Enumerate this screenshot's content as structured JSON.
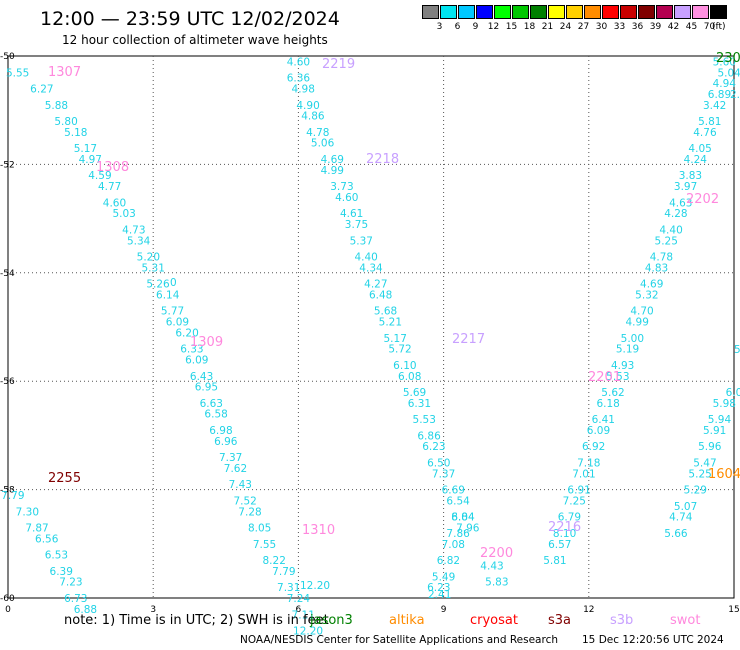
{
  "title": "12:00 — 23:59 UTC 12/02/2024",
  "subtitle": "12 hour collection of altimeter wave heights",
  "legend": {
    "unit": "(ft)",
    "bins": [
      {
        "label": "3",
        "color": "#808080"
      },
      {
        "label": "6",
        "color": "#00e5f0"
      },
      {
        "label": "9",
        "color": "#00c8ff"
      },
      {
        "label": "12",
        "color": "#0000ff"
      },
      {
        "label": "15",
        "color": "#00ff00"
      },
      {
        "label": "18",
        "color": "#00c800"
      },
      {
        "label": "21",
        "color": "#008000"
      },
      {
        "label": "24",
        "color": "#ffff00"
      },
      {
        "label": "27",
        "color": "#ffd000"
      },
      {
        "label": "30",
        "color": "#ff8c00"
      },
      {
        "label": "33",
        "color": "#ff0000"
      },
      {
        "label": "36",
        "color": "#c80000"
      },
      {
        "label": "39",
        "color": "#800000"
      },
      {
        "label": "42",
        "color": "#b40050"
      },
      {
        "label": "45",
        "color": "#c8a0ff"
      },
      {
        "label": "70",
        "color": "#ff90e0"
      },
      {
        "label": "",
        "color": "#000000"
      }
    ]
  },
  "axes": {
    "x_ticks": [
      "0",
      "3",
      "6",
      "9",
      "12",
      "15"
    ],
    "y_ticks": [
      "-50",
      "-52",
      "-54",
      "-56",
      "-58",
      "-60"
    ]
  },
  "swh_color": "#22d3e6",
  "passes": [
    {
      "id": "1307",
      "color": "#ff88dd",
      "points": [
        [
          "-50.3",
          "0.2",
          "5.55"
        ],
        [
          "-50.6",
          "0.7",
          "6.27"
        ],
        [
          "-50.9",
          "1.0",
          "5.88"
        ],
        [
          "-51.2",
          "1.2",
          "5.80"
        ],
        [
          "-51.4",
          "1.4",
          "5.18"
        ],
        [
          "-51.7",
          "1.6",
          "5.17"
        ],
        [
          "-51.9",
          "1.7",
          "4.97"
        ],
        [
          "-52.2",
          "1.9",
          "4.59"
        ],
        [
          "-52.4",
          "2.1",
          "4.77"
        ],
        [
          "-52.7",
          "2.2",
          "4.60"
        ],
        [
          "-52.9",
          "2.4",
          "5.03"
        ],
        [
          "-53.2",
          "2.6",
          "4.73"
        ],
        [
          "-53.4",
          "2.7",
          "5.34"
        ],
        [
          "-53.7",
          "2.9",
          "5.20"
        ],
        [
          "-53.9",
          "3.0",
          "5.31"
        ],
        [
          "-54.2",
          "3.1",
          "5.26"
        ],
        [
          "-54.4",
          "3.3",
          "6.14"
        ],
        [
          "-54.7",
          "3.4",
          "5.77"
        ],
        [
          "-54.9",
          "3.5",
          "6.09"
        ],
        [
          "-55.1",
          "3.7",
          "6.20"
        ],
        [
          "-55.4",
          "3.8",
          "6.33"
        ],
        [
          "-55.6",
          "3.9",
          "6.09"
        ],
        [
          "-55.9",
          "4.0",
          "6.43"
        ],
        [
          "-56.1",
          "4.1",
          "6.95"
        ],
        [
          "-56.4",
          "4.2",
          "6.63"
        ],
        [
          "-56.6",
          "4.3",
          "6.58"
        ],
        [
          "-56.9",
          "4.4",
          "6.98"
        ],
        [
          "-57.1",
          "4.5",
          "6.96"
        ],
        [
          "-57.4",
          "4.6",
          "7.37"
        ],
        [
          "-57.6",
          "4.7",
          "7.62"
        ],
        [
          "-57.9",
          "4.8",
          "7.43"
        ],
        [
          "-58.2",
          "4.9",
          "7.52"
        ],
        [
          "-58.4",
          "5.0",
          "7.28"
        ],
        [
          "-58.7",
          "5.2",
          "8.05"
        ],
        [
          "-59.0",
          "5.3",
          "7.55"
        ],
        [
          "-59.3",
          "5.5",
          "8.22"
        ],
        [
          "-59.5",
          "5.7",
          "7.79"
        ],
        [
          "-59.8",
          "5.8",
          "7.31"
        ],
        [
          "-60.0",
          "6.0",
          "7.24"
        ],
        [
          "-60.3",
          "6.1",
          "7.11"
        ],
        [
          "-60.6",
          "6.2",
          "12.20"
        ]
      ]
    },
    {
      "id": "1308",
      "color": "#ff88dd",
      "points": []
    },
    {
      "id": "1309",
      "color": "#ff88dd",
      "points": []
    },
    {
      "id": "1310",
      "color": "#ff88dd",
      "points": []
    },
    {
      "id": "2255",
      "color": "#800000",
      "points": [
        [
          "-58.1",
          "0.1",
          "7.79"
        ],
        [
          "-58.4",
          "0.4",
          "7.30"
        ],
        [
          "-58.7",
          "0.6",
          "7.87"
        ],
        [
          "-58.9",
          "0.8",
          "6.56"
        ],
        [
          "-59.2",
          "1.0",
          "6.53"
        ],
        [
          "-59.5",
          "1.1",
          "6.39"
        ],
        [
          "-59.7",
          "1.3",
          "7.23"
        ],
        [
          "-60.0",
          "1.4",
          "6.73"
        ],
        [
          "-60.2",
          "1.6",
          "6.88"
        ]
      ]
    },
    {
      "id": "2219",
      "color": "#c8a0ff",
      "points": [
        [
          "-50.1",
          "6.0",
          "4.60"
        ],
        [
          "-50.4",
          "6.0",
          "6.36"
        ],
        [
          "-50.6",
          "6.1",
          "4.98"
        ],
        [
          "-50.9",
          "6.2",
          "4.90"
        ],
        [
          "-51.1",
          "6.3",
          "4.86"
        ],
        [
          "-51.4",
          "6.4",
          "4.78"
        ],
        [
          "-51.6",
          "6.5",
          "5.06"
        ],
        [
          "-51.9",
          "6.7",
          "4.69"
        ]
      ]
    },
    {
      "id": "2218",
      "color": "#c8a0ff",
      "points": [
        [
          "-52.1",
          "6.7",
          "4.99"
        ],
        [
          "-52.4",
          "6.9",
          "3.73"
        ],
        [
          "-52.6",
          "7.0",
          "4.60"
        ],
        [
          "-52.9",
          "7.1",
          "4.61"
        ],
        [
          "-53.1",
          "7.2",
          "3.75"
        ],
        [
          "-53.4",
          "7.3",
          "5.37"
        ],
        [
          "-53.7",
          "7.4",
          "4.40"
        ],
        [
          "-53.9",
          "7.5",
          "4.34"
        ],
        [
          "-54.2",
          "7.6",
          "4.27"
        ],
        [
          "-54.4",
          "7.7",
          "6.48"
        ],
        [
          "-54.7",
          "7.8",
          "5.68"
        ],
        [
          "-54.9",
          "7.9",
          "5.21"
        ],
        [
          "-55.2",
          "8.0",
          "5.17"
        ],
        [
          "-55.4",
          "8.1",
          "5.72"
        ],
        [
          "-55.7",
          "8.2",
          "6.10"
        ],
        [
          "-55.9",
          "8.3",
          "6.08"
        ],
        [
          "-56.2",
          "8.4",
          "5.69"
        ],
        [
          "-56.4",
          "8.5",
          "6.31"
        ],
        [
          "-56.7",
          "8.6",
          "5.53"
        ],
        [
          "-57.0",
          "8.7",
          "6.86"
        ],
        [
          "-57.2",
          "8.8",
          "6.23"
        ],
        [
          "-57.5",
          "8.9",
          "6.50"
        ],
        [
          "-57.7",
          "9.0",
          "7.37"
        ],
        [
          "-58.0",
          "9.2",
          "6.69"
        ],
        [
          "-58.2",
          "9.3",
          "6.54"
        ],
        [
          "-58.5",
          "9.4",
          "8.04"
        ],
        [
          "-58.7",
          "9.5",
          "7.96"
        ]
      ]
    },
    {
      "id": "2217",
      "color": "#c8a0ff",
      "points": []
    },
    {
      "id": "2200",
      "color": "#ff88dd",
      "points": [
        [
          "-58.5",
          "9.4",
          "6.84"
        ],
        [
          "-58.8",
          "9.3",
          "7.86"
        ],
        [
          "-59.0",
          "9.2",
          "7.08"
        ],
        [
          "-59.3",
          "9.1",
          "6.82"
        ],
        [
          "-59.6",
          "9.0",
          "5.49"
        ],
        [
          "-59.8",
          "8.9",
          "6.23"
        ]
      ]
    },
    {
      "id": "2216",
      "color": "#c8a0ff",
      "points": [
        [
          "-59.4",
          "10.0",
          "4.43"
        ],
        [
          "-59.7",
          "10.1",
          "5.83"
        ]
      ]
    },
    {
      "id": "2201",
      "color": "#ff88dd",
      "points": [
        [
          "-50.1",
          "14.8",
          "5.60"
        ],
        [
          "-50.3",
          "14.9",
          "5.04"
        ],
        [
          "-50.5",
          "14.8",
          "4.94"
        ],
        [
          "-50.7",
          "14.7",
          "6.89"
        ],
        [
          "-50.9",
          "14.6",
          "3.42"
        ],
        [
          "-51.2",
          "14.5",
          "5.81"
        ],
        [
          "-51.4",
          "14.4",
          "4.76"
        ],
        [
          "-51.7",
          "14.3",
          "4.05"
        ],
        [
          "-51.9",
          "14.2",
          "4.24"
        ],
        [
          "-52.2",
          "14.1",
          "3.83"
        ],
        [
          "-52.4",
          "14.0",
          "3.97"
        ],
        [
          "-52.7",
          "13.9",
          "4.63"
        ],
        [
          "-52.9",
          "13.8",
          "4.28"
        ],
        [
          "-53.2",
          "13.7",
          "4.40"
        ],
        [
          "-53.4",
          "13.6",
          "5.25"
        ],
        [
          "-53.7",
          "13.5",
          "4.78"
        ],
        [
          "-53.9",
          "13.4",
          "4.83"
        ],
        [
          "-54.2",
          "13.3",
          "4.69"
        ],
        [
          "-54.4",
          "13.2",
          "5.32"
        ],
        [
          "-54.7",
          "13.1",
          "4.70"
        ],
        [
          "-54.9",
          "13.0",
          "4.99"
        ],
        [
          "-55.2",
          "12.9",
          "5.00"
        ],
        [
          "-55.4",
          "12.8",
          "5.19"
        ],
        [
          "-55.7",
          "12.7",
          "4.93"
        ],
        [
          "-55.9",
          "12.6",
          "5.53"
        ],
        [
          "-56.2",
          "12.5",
          "5.62"
        ],
        [
          "-56.4",
          "12.4",
          "6.18"
        ],
        [
          "-56.7",
          "12.3",
          "6.41"
        ],
        [
          "-56.9",
          "12.2",
          "6.09"
        ],
        [
          "-57.2",
          "12.1",
          "6.92"
        ],
        [
          "-57.5",
          "12.0",
          "7.18"
        ],
        [
          "-57.7",
          "11.9",
          "7.01"
        ],
        [
          "-58.0",
          "11.8",
          "6.91"
        ],
        [
          "-58.2",
          "11.7",
          "7.25"
        ],
        [
          "-58.5",
          "11.6",
          "6.79"
        ],
        [
          "-58.8",
          "11.5",
          "8.10"
        ],
        [
          "-59.0",
          "11.4",
          "6.57"
        ],
        [
          "-59.3",
          "11.3",
          "5.81"
        ]
      ]
    },
    {
      "id": "2202",
      "color": "#ff88dd",
      "points": []
    },
    {
      "id": "1604",
      "color": "#ff8c00",
      "points": [
        [
          "-56.2",
          "15.0",
          "6.0"
        ],
        [
          "-56.4",
          "14.8",
          "5.98"
        ],
        [
          "-56.7",
          "14.7",
          "5.94"
        ],
        [
          "-56.9",
          "14.6",
          "5.91"
        ],
        [
          "-57.2",
          "14.5",
          "5.96"
        ],
        [
          "-57.5",
          "14.4",
          "5.47"
        ],
        [
          "-57.7",
          "14.3",
          "5.25"
        ],
        [
          "-58.0",
          "14.2",
          "5.29"
        ],
        [
          "-58.3",
          "14.0",
          "5.07"
        ],
        [
          "-58.5",
          "13.9",
          "4.74"
        ],
        [
          "-58.8",
          "13.8",
          "5.66"
        ]
      ]
    },
    {
      "id": "230",
      "color": "#008000",
      "points": []
    }
  ],
  "misc_labels": [
    {
      "text": "0",
      "color": "#000000"
    },
    {
      "text": "2.41",
      "color": "#808080"
    },
    {
      "text": "12.20",
      "color": "#00ff00"
    },
    {
      "text": "2.2",
      "color": "#22d3e6"
    },
    {
      "text": "5",
      "color": "#22d3e6"
    }
  ],
  "note": "note:  1) Time is in UTC; 2) SWH is in feet",
  "satellites": [
    {
      "name": "jason3",
      "color": "#008000"
    },
    {
      "name": "altika",
      "color": "#ff8c00"
    },
    {
      "name": "cryosat",
      "color": "#ff0000"
    },
    {
      "name": "s3a",
      "color": "#800000"
    },
    {
      "name": "s3b",
      "color": "#c8a0ff"
    },
    {
      "name": "swot",
      "color": "#ff88dd"
    }
  ],
  "credit": "NOAA/NESDIS Center for Satellite Applications and Research",
  "stamp": "15 Dec 12:20:56 UTC 2024"
}
